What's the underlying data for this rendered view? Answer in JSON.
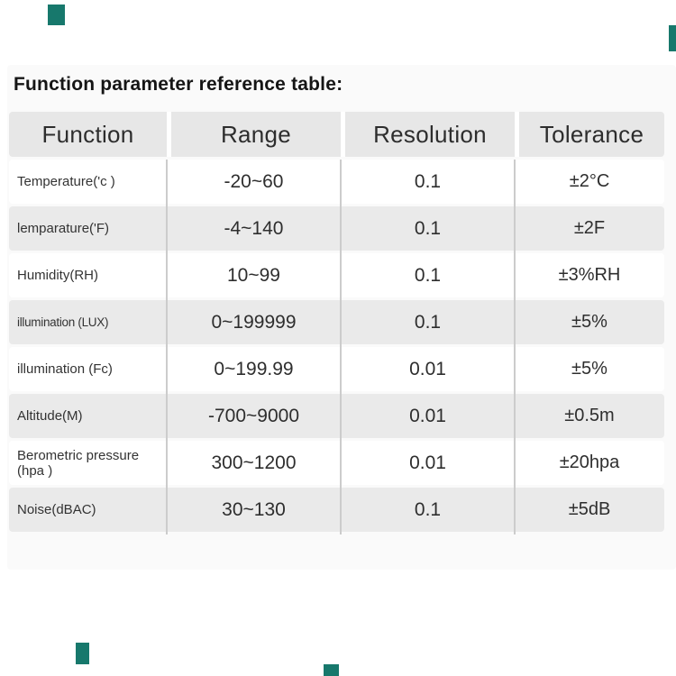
{
  "page": {
    "background_color": "#ffffff",
    "card_background_color": "#fafafa",
    "watermark_color": "#17786c"
  },
  "title": "Function parameter reference table:",
  "table": {
    "colors": {
      "header_background": "#e7e7e7",
      "row_background": "#ffffff",
      "row_alt_background": "#eaeaea",
      "separator_line": "#cccccc",
      "text": "#2e2e2e"
    },
    "headers": [
      "Function",
      "Range",
      "Resolution",
      "Tolerance"
    ],
    "rows": [
      {
        "function": "Temperature('c )",
        "range": "-20~60",
        "resolution": "0.1",
        "tolerance": "±2°C"
      },
      {
        "function": "lemparature('F)",
        "range": "-4~140",
        "resolution": "0.1",
        "tolerance": "±2F"
      },
      {
        "function": "Humidity(RH)",
        "range": "10~99",
        "resolution": "0.1",
        "tolerance": "±3%RH"
      },
      {
        "function": "illumination (LUX)",
        "range": "0~199999",
        "resolution": "0.1",
        "tolerance": "±5%"
      },
      {
        "function": "illumination (Fc)",
        "range": "0~199.99",
        "resolution": "0.01",
        "tolerance": "±5%"
      },
      {
        "function": "Altitude(M)",
        "range": "-700~9000",
        "resolution": "0.01",
        "tolerance": "±0.5m"
      },
      {
        "function": "Berometric pressure (hpa )",
        "range": "300~1200",
        "resolution": "0.01",
        "tolerance": "±20hpa"
      },
      {
        "function": "Noise(dBAC)",
        "range": "30~130",
        "resolution": "0.1",
        "tolerance": "±5dB"
      }
    ]
  }
}
